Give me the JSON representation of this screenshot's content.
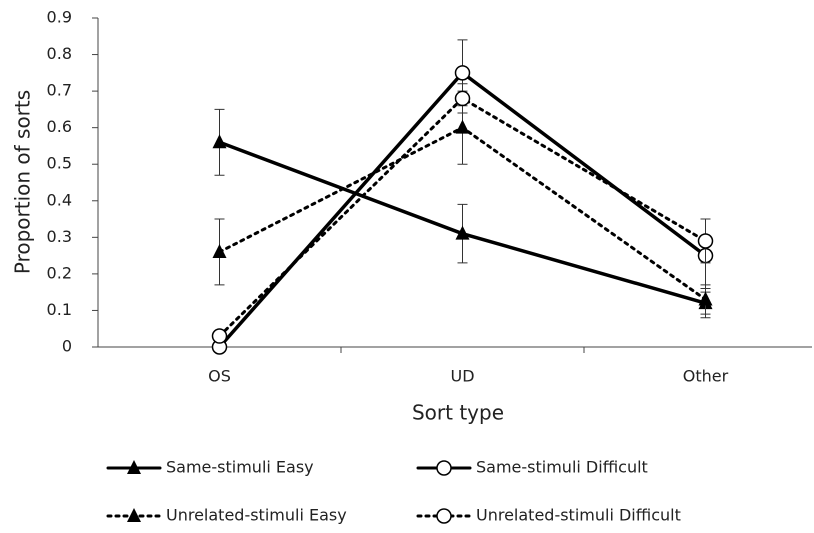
{
  "chart_data": {
    "type": "line",
    "x_label": "Sort type",
    "y_label": "Proportion of sorts",
    "categories": [
      "OS",
      "UD",
      "Other"
    ],
    "ylim": [
      0,
      0.9
    ],
    "yticks": [
      0,
      0.1,
      0.2,
      0.3,
      0.4,
      0.5,
      0.6,
      0.7,
      0.8,
      0.9
    ],
    "grid": false,
    "series": [
      {
        "name": "Same-stimuli Easy",
        "color": "#000000",
        "dash": "solid",
        "marker": "triangle",
        "values": [
          0.56,
          0.31,
          0.12
        ],
        "errors": [
          0.09,
          0.08,
          0.04
        ]
      },
      {
        "name": "Same-stimuli Difficult",
        "color": "#000000",
        "dash": "solid",
        "marker": "circle",
        "values": [
          0.0,
          0.75,
          0.25
        ],
        "errors": [
          0.0,
          0.09,
          0.1
        ]
      },
      {
        "name": "Unrelated-stimuli Easy",
        "color": "#000000",
        "dash": "dotted",
        "marker": "triangle",
        "values": [
          0.26,
          0.6,
          0.13
        ],
        "errors": [
          0.09,
          0.1,
          0.04
        ]
      },
      {
        "name": "Unrelated-stimuli Difficult",
        "color": "#000000",
        "dash": "dotted",
        "marker": "circle",
        "values": [
          0.03,
          0.68,
          0.29
        ],
        "errors": [
          0.0,
          0.04,
          0.06
        ]
      }
    ]
  }
}
